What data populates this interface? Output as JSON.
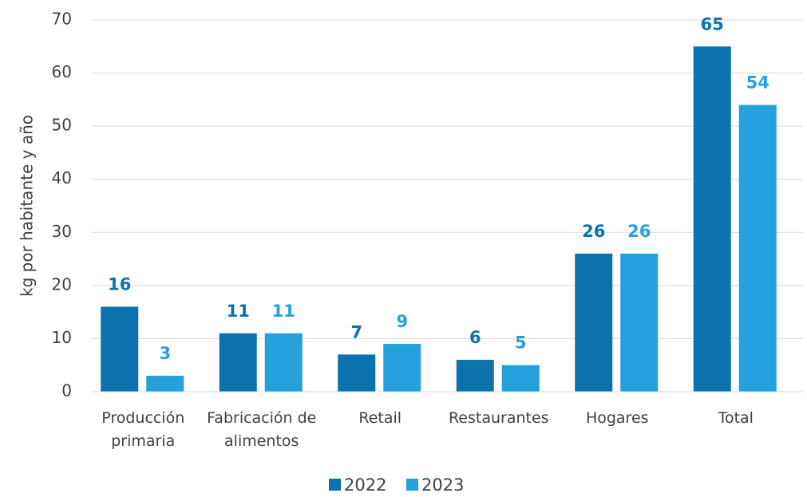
{
  "chart_data": {
    "type": "bar",
    "y_label": "kg por habitante y año",
    "categories": [
      "Producción primaria",
      "Fabricación de alimentos",
      "Retail",
      "Restaurantes",
      "Hogares",
      "Total"
    ],
    "series": [
      {
        "name": "2022",
        "color": "#0b72ad",
        "values": [
          16,
          11,
          7,
          6,
          26,
          65
        ]
      },
      {
        "name": "2023",
        "color": "#24a1dd",
        "values": [
          3,
          11,
          9,
          5,
          26,
          54
        ]
      }
    ],
    "ylim": [
      0,
      70
    ],
    "yticks": [
      0,
      10,
      20,
      30,
      40,
      50,
      60,
      70
    ],
    "grid": true,
    "legend": "bottom"
  }
}
